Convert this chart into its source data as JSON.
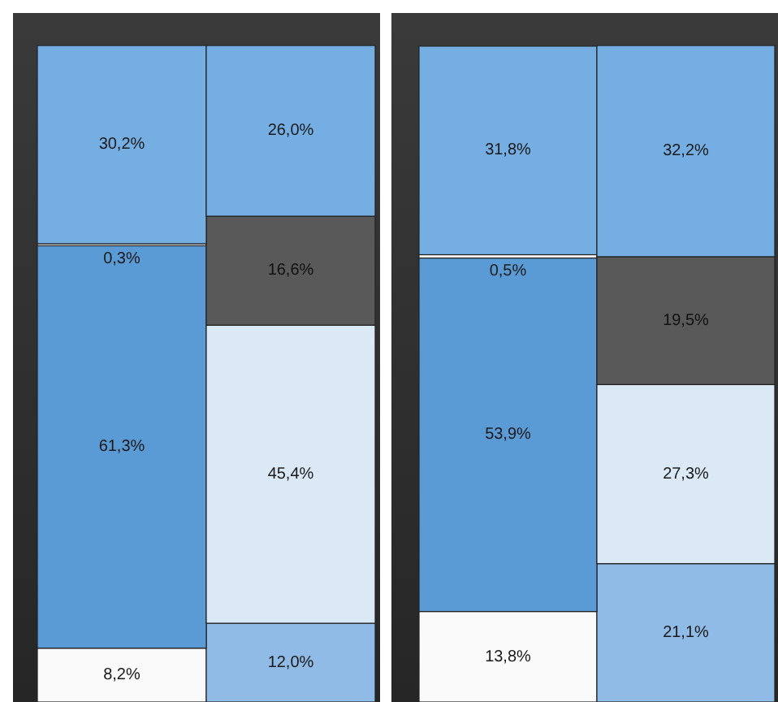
{
  "chart_data": [
    {
      "type": "bar",
      "stacked": true,
      "categories": [
        null,
        null
      ],
      "series": [
        {
          "color": "#fafafa",
          "values": [
            8.2,
            null
          ],
          "value_labels": [
            "8,2%",
            null
          ]
        },
        {
          "color": "#8fbbe6",
          "values": [
            null,
            12.0
          ],
          "value_labels": [
            null,
            "12,0%"
          ]
        },
        {
          "color": "#5b9bd5",
          "values": [
            61.3,
            null
          ],
          "value_labels": [
            "61,3%",
            null
          ]
        },
        {
          "color": "#dbe8f5",
          "values": [
            null,
            45.4
          ],
          "value_labels": [
            null,
            "45,4%"
          ]
        },
        {
          "color": "#ffffff",
          "values": [
            0.3,
            null
          ],
          "value_labels": [
            "0,3%",
            null
          ]
        },
        {
          "color": "#595959",
          "values": [
            null,
            16.6
          ],
          "value_labels": [
            null,
            "16,6%"
          ]
        },
        {
          "color": "#74aee2",
          "values": [
            30.2,
            26.0
          ],
          "value_labels": [
            "30,2%",
            "26,0%"
          ]
        }
      ]
    },
    {
      "type": "bar",
      "stacked": true,
      "categories": [
        null,
        null
      ],
      "series": [
        {
          "color": "#fafafa",
          "values": [
            13.8,
            null
          ],
          "value_labels": [
            "13,8%",
            null
          ]
        },
        {
          "color": "#8fbbe6",
          "values": [
            null,
            21.1
          ],
          "value_labels": [
            null,
            "21,1%"
          ]
        },
        {
          "color": "#5b9bd5",
          "values": [
            53.9,
            null
          ],
          "value_labels": [
            "53,9%",
            null
          ]
        },
        {
          "color": "#dbe8f5",
          "values": [
            null,
            27.3
          ],
          "value_labels": [
            null,
            "27,3%"
          ]
        },
        {
          "color": "#ffffff",
          "values": [
            0.5,
            null
          ],
          "value_labels": [
            "0,5%",
            null
          ]
        },
        {
          "color": "#595959",
          "values": [
            null,
            19.5
          ],
          "value_labels": [
            null,
            "19,5%"
          ]
        },
        {
          "color": "#74aee2",
          "values": [
            31.8,
            32.2
          ],
          "value_labels": [
            "31,8%",
            "32,2%"
          ]
        }
      ]
    }
  ]
}
